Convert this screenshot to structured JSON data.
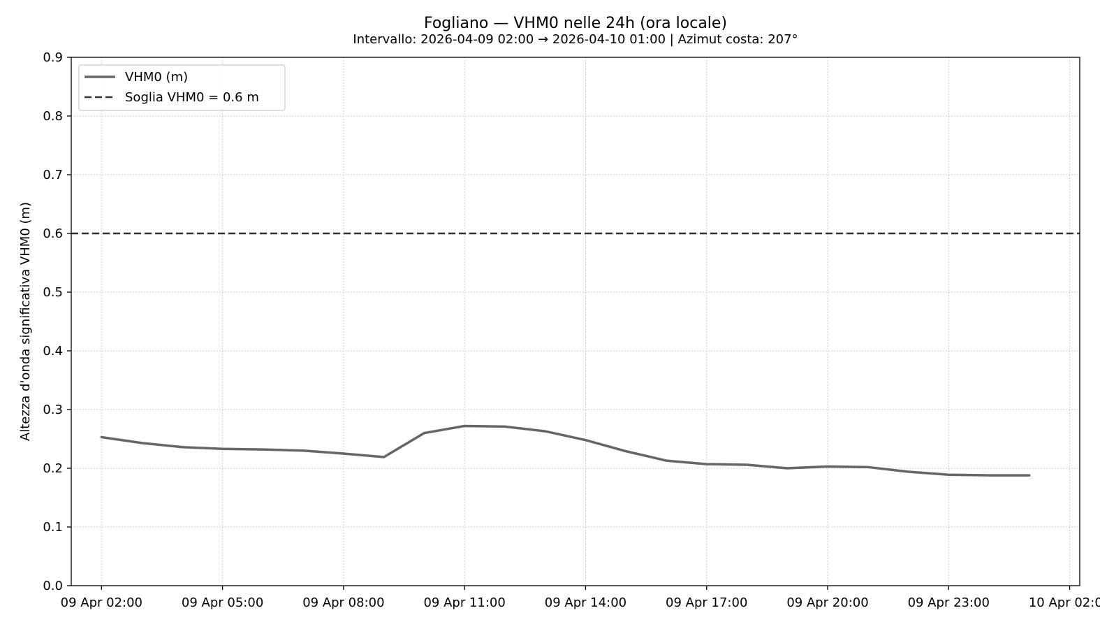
{
  "chart_data": {
    "type": "line",
    "title": "Fogliano — VHM0 nelle 24h (ora locale)",
    "subtitle": "Intervallo: 2026-04-09 02:00 → 2026-04-10 01:00  |  Azimut costa: 207°",
    "xlabel": "",
    "ylabel": "Altezza d'onda significativa VHM0 (m)",
    "ylim": [
      0,
      0.9
    ],
    "xlim": [
      "2026-04-09 01:15",
      "2026-04-10 02:15"
    ],
    "grid": true,
    "legend_position": "top-left",
    "yticks": [
      "0.0",
      "0.1",
      "0.2",
      "0.3",
      "0.4",
      "0.5",
      "0.6",
      "0.7",
      "0.8",
      "0.9"
    ],
    "xticks": [
      {
        "value": "2026-04-09 02:00",
        "label": "09 Apr 02:00"
      },
      {
        "value": "2026-04-09 05:00",
        "label": "09 Apr 05:00"
      },
      {
        "value": "2026-04-09 08:00",
        "label": "09 Apr 08:00"
      },
      {
        "value": "2026-04-09 11:00",
        "label": "09 Apr 11:00"
      },
      {
        "value": "2026-04-09 14:00",
        "label": "09 Apr 14:00"
      },
      {
        "value": "2026-04-09 17:00",
        "label": "09 Apr 17:00"
      },
      {
        "value": "2026-04-09 20:00",
        "label": "09 Apr 20:00"
      },
      {
        "value": "2026-04-09 23:00",
        "label": "09 Apr 23:00"
      },
      {
        "value": "2026-04-10 02:00",
        "label": "10 Apr 02:00"
      }
    ],
    "series": [
      {
        "name": "VHM0 (m)",
        "color": "#666666",
        "style": "solid",
        "x": [
          "2026-04-09 02:00",
          "2026-04-09 03:00",
          "2026-04-09 04:00",
          "2026-04-09 05:00",
          "2026-04-09 06:00",
          "2026-04-09 07:00",
          "2026-04-09 08:00",
          "2026-04-09 09:00",
          "2026-04-09 10:00",
          "2026-04-09 11:00",
          "2026-04-09 12:00",
          "2026-04-09 13:00",
          "2026-04-09 14:00",
          "2026-04-09 15:00",
          "2026-04-09 16:00",
          "2026-04-09 17:00",
          "2026-04-09 18:00",
          "2026-04-09 19:00",
          "2026-04-09 20:00",
          "2026-04-09 21:00",
          "2026-04-09 22:00",
          "2026-04-09 23:00",
          "2026-04-10 00:00",
          "2026-04-10 01:00"
        ],
        "y": [
          0.253,
          0.243,
          0.236,
          0.233,
          0.232,
          0.23,
          0.225,
          0.219,
          0.26,
          0.272,
          0.271,
          0.263,
          0.248,
          0.229,
          0.213,
          0.207,
          0.206,
          0.2,
          0.203,
          0.202,
          0.194,
          0.189,
          0.188,
          0.188
        ]
      }
    ],
    "threshold": {
      "name": "Soglia VHM0 = 0.6 m",
      "value": 0.6,
      "color": "#333333",
      "style": "dashed"
    }
  }
}
